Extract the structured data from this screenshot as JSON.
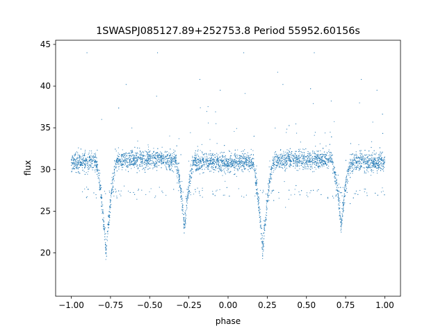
{
  "chart_data": {
    "type": "scatter",
    "title": "1SWASPJ085127.89+252753.8 Period 55952.60156s",
    "xlabel": "phase",
    "ylabel": "flux",
    "xlim": [
      -1.1,
      1.1
    ],
    "ylim": [
      14.8,
      45.5
    ],
    "x_ticks": [
      -1.0,
      -0.75,
      -0.5,
      -0.25,
      0.0,
      0.25,
      0.5,
      0.75,
      1.0
    ],
    "x_tick_labels": [
      "−1.00",
      "−0.75",
      "−0.50",
      "−0.25",
      "0.00",
      "0.25",
      "0.50",
      "0.75",
      "1.00"
    ],
    "y_ticks": [
      20,
      25,
      30,
      35,
      40,
      45
    ],
    "y_tick_labels": [
      "20",
      "25",
      "30",
      "35",
      "40",
      "45"
    ],
    "grid": false,
    "point_color": "#1f77b4",
    "series": [
      {
        "values_description_free": true,
        "points": [
          {
            "x": -1.0,
            "y": 31.0
          },
          {
            "x": -0.95,
            "y": 31.2
          },
          {
            "x": -0.9,
            "y": 30.8
          },
          {
            "x": -0.85,
            "y": 29.5
          },
          {
            "x": -0.82,
            "y": 25.0
          },
          {
            "x": -0.78,
            "y": 20.0
          },
          {
            "x": -0.75,
            "y": 24.5
          },
          {
            "x": -0.72,
            "y": 29.5
          },
          {
            "x": -0.65,
            "y": 30.8
          },
          {
            "x": -0.5,
            "y": 31.3
          },
          {
            "x": -0.35,
            "y": 30.8
          },
          {
            "x": -0.3,
            "y": 28.0
          },
          {
            "x": -0.27,
            "y": 23.5
          },
          {
            "x": -0.24,
            "y": 27.0
          },
          {
            "x": -0.2,
            "y": 30.5
          },
          {
            "x": -0.1,
            "y": 31.0
          },
          {
            "x": 0.0,
            "y": 31.0
          },
          {
            "x": 0.1,
            "y": 30.8
          },
          {
            "x": 0.15,
            "y": 29.5
          },
          {
            "x": 0.18,
            "y": 25.0
          },
          {
            "x": 0.22,
            "y": 20.0
          },
          {
            "x": 0.25,
            "y": 24.5
          },
          {
            "x": 0.28,
            "y": 29.5
          },
          {
            "x": 0.35,
            "y": 30.8
          },
          {
            "x": 0.5,
            "y": 31.3
          },
          {
            "x": 0.65,
            "y": 30.8
          },
          {
            "x": 0.7,
            "y": 28.0
          },
          {
            "x": 0.73,
            "y": 23.5
          },
          {
            "x": 0.76,
            "y": 27.0
          },
          {
            "x": 0.8,
            "y": 30.5
          },
          {
            "x": 0.9,
            "y": 31.0
          },
          {
            "x": 1.0,
            "y": 31.0
          }
        ]
      }
    ]
  }
}
